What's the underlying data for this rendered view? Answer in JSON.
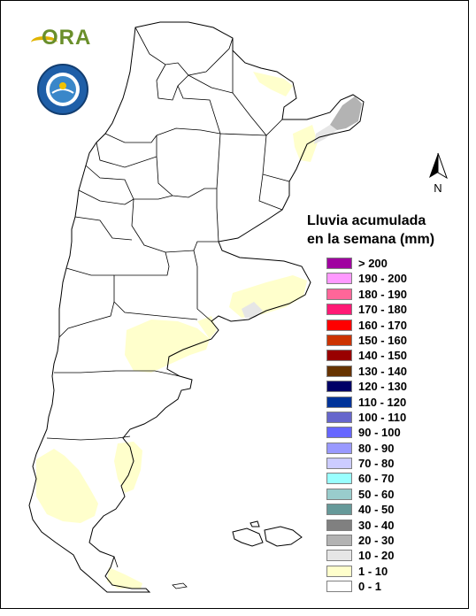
{
  "logo": {
    "text": "ORA"
  },
  "seal": {
    "text": "ARGENTINA"
  },
  "north_label": "N",
  "legend": {
    "title_line1": "Lluvia acumulada",
    "title_line2": "en la semana (mm)",
    "items": [
      {
        "label": "> 200",
        "color": "#a000a0"
      },
      {
        "label": "190 - 200",
        "color": "#ff99ff"
      },
      {
        "label": "180 - 190",
        "color": "#ff6699"
      },
      {
        "label": "170 - 180",
        "color": "#ff1a75"
      },
      {
        "label": "160 - 170",
        "color": "#ff0000"
      },
      {
        "label": "150 - 160",
        "color": "#cc3300"
      },
      {
        "label": "140 - 150",
        "color": "#990000"
      },
      {
        "label": "130 - 140",
        "color": "#663300"
      },
      {
        "label": "120 - 130",
        "color": "#000066"
      },
      {
        "label": "110 - 120",
        "color": "#003399"
      },
      {
        "label": "100 - 110",
        "color": "#6666cc"
      },
      {
        "label": "90 - 100",
        "color": "#6666ff"
      },
      {
        "label": "80 - 90",
        "color": "#9999ff"
      },
      {
        "label": "70 - 80",
        "color": "#ccccff"
      },
      {
        "label": "60 - 70",
        "color": "#99ffff"
      },
      {
        "label": "50 - 60",
        "color": "#99cccc"
      },
      {
        "label": "40 - 50",
        "color": "#669999"
      },
      {
        "label": "30 - 40",
        "color": "#808080"
      },
      {
        "label": "20 - 30",
        "color": "#b3b3b3"
      },
      {
        "label": "10 - 20",
        "color": "#e6e6e6"
      },
      {
        "label": "1 - 10",
        "color": "#ffffcc"
      },
      {
        "label": "0 - 1",
        "color": "#ffffff"
      }
    ]
  },
  "colors": {
    "light_rain": "#ffffcc",
    "medium_rain": "#e6e6e6",
    "gray_rain": "#b3b3b3",
    "border": "#000000"
  }
}
